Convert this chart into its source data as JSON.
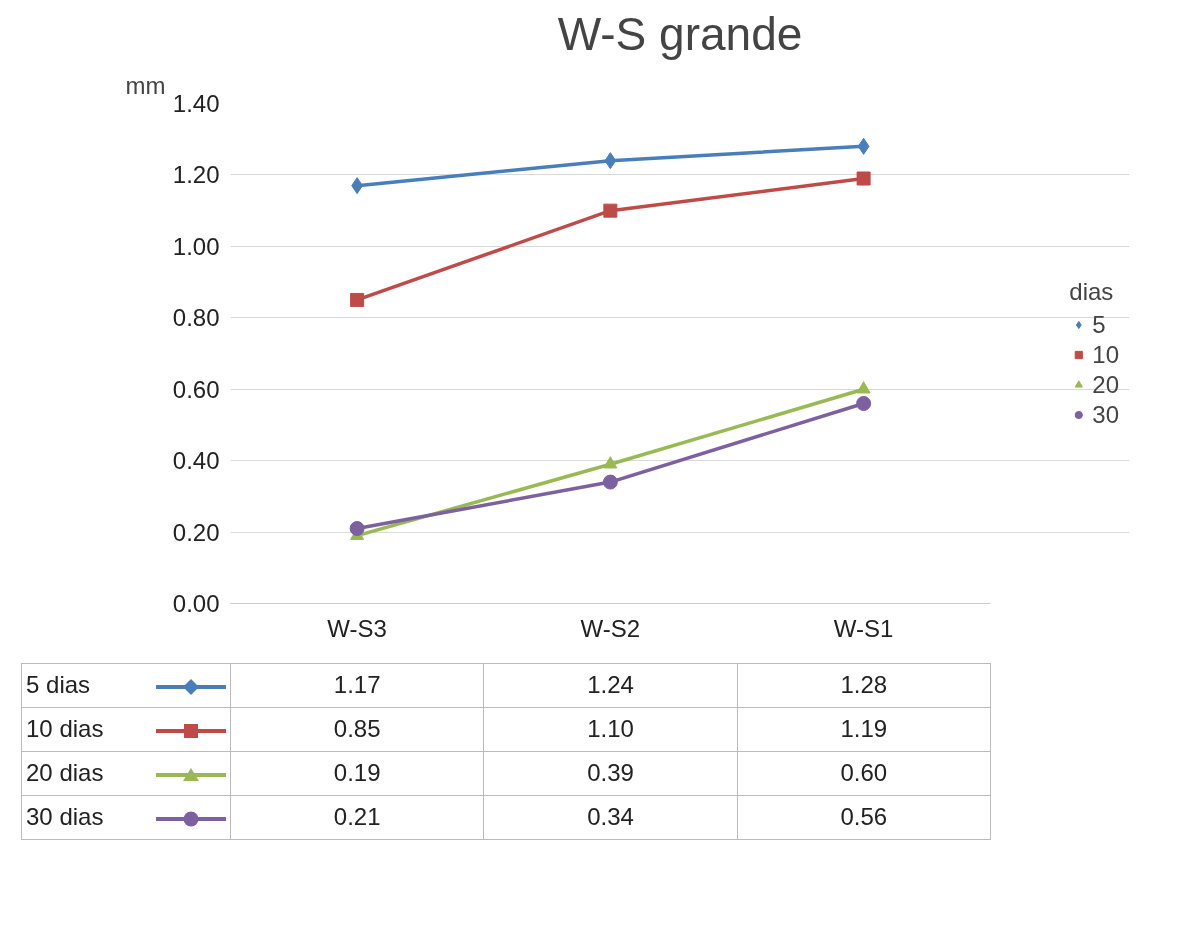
{
  "chart_data": {
    "type": "line",
    "title": "W-S grande",
    "ylabel": "mm",
    "legend_title": "dias",
    "legend": "right",
    "grid": "y",
    "categories": [
      "W-S3",
      "W-S2",
      "W-S1"
    ],
    "ylim": [
      0,
      1.4
    ],
    "yticks": [
      {
        "value": 0,
        "label": "0.00"
      },
      {
        "value": 0.2,
        "label": "0.20"
      },
      {
        "value": 0.4,
        "label": "0.40"
      },
      {
        "value": 0.6,
        "label": "0.60"
      },
      {
        "value": 0.8,
        "label": "0.80"
      },
      {
        "value": 1.0,
        "label": "1.00"
      },
      {
        "value": 1.2,
        "label": "1.20"
      },
      {
        "value": 1.4,
        "label": "1.40"
      }
    ],
    "series": [
      {
        "name": "5",
        "color": "#4a7ebb",
        "marker": "diamond",
        "values": [
          1.17,
          1.24,
          1.28
        ],
        "value_labels": [
          "1.17",
          "1.24",
          "1.28"
        ]
      },
      {
        "name": "10",
        "color": "#be4b48",
        "marker": "square",
        "values": [
          0.85,
          1.1,
          1.19
        ],
        "value_labels": [
          "0.85",
          "1.10",
          "1.19"
        ]
      },
      {
        "name": "20",
        "color": "#98b954",
        "marker": "triangle",
        "values": [
          0.19,
          0.39,
          0.6
        ],
        "value_labels": [
          "0.19",
          "0.39",
          "0.60"
        ]
      },
      {
        "name": "30",
        "color": "#7d60a0",
        "marker": "circle",
        "values": [
          0.21,
          0.34,
          0.56
        ],
        "value_labels": [
          "0.21",
          "0.34",
          "0.56"
        ]
      }
    ]
  }
}
